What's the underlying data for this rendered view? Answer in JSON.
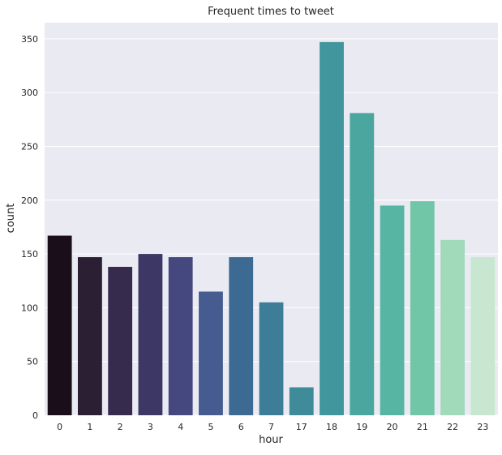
{
  "chart_data": {
    "type": "bar",
    "title": "Frequent times to tweet",
    "xlabel": "hour",
    "ylabel": "count",
    "categories": [
      "0",
      "1",
      "2",
      "3",
      "4",
      "5",
      "6",
      "7",
      "17",
      "18",
      "19",
      "20",
      "21",
      "22",
      "23"
    ],
    "values": [
      167,
      147,
      138,
      150,
      147,
      115,
      147,
      105,
      26,
      347,
      281,
      195,
      199,
      163,
      147
    ],
    "ylim": [
      0,
      365
    ],
    "yticks": [
      0,
      50,
      100,
      150,
      200,
      250,
      300,
      350
    ],
    "grid": true,
    "colors": {
      "background": "#eaeaf2",
      "grid": "#ffffff",
      "bars": [
        "#1a0e1b",
        "#2a1f33",
        "#362a4d",
        "#3c3764",
        "#45487f",
        "#465b8f",
        "#3d6a93",
        "#3d7d98",
        "#3f8b9a",
        "#40969c",
        "#4aa69f",
        "#57b5a4",
        "#72c6a8",
        "#a1d9bb",
        "#c8e7d0"
      ]
    }
  }
}
